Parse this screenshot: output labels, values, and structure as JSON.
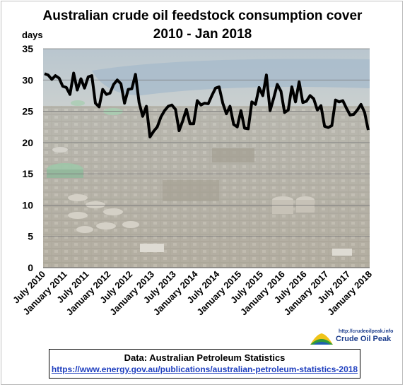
{
  "chart_data": {
    "type": "line",
    "title": "Australian  crude oil feedstock consumption  cover",
    "subtitle": "2010 - Jan 2018",
    "ylabel": "days",
    "ylim": [
      0,
      35
    ],
    "yticks": [
      "0",
      "5",
      "10",
      "15",
      "20",
      "25",
      "30",
      "35"
    ],
    "xticks": [
      "July 2010",
      "January 2011",
      "July 2011",
      "January 2012",
      "July 2012",
      "January 2013",
      "July 2013",
      "January 2014",
      "July 2014",
      "January 2015",
      "July 2015",
      "January 2016",
      "July 2016",
      "January 2017",
      "July 2017",
      "January 2018"
    ],
    "grid": true,
    "series": [
      {
        "color": "#000000",
        "values": [
          31.0,
          30.8,
          30.1,
          30.7,
          30.3,
          29.0,
          28.8,
          27.7,
          31.1,
          28.4,
          30.2,
          28.7,
          30.5,
          30.7,
          26.3,
          25.7,
          28.5,
          27.7,
          27.9,
          29.3,
          30.0,
          29.4,
          26.3,
          28.5,
          28.6,
          30.9,
          26.4,
          24.2,
          25.8,
          20.9,
          21.8,
          22.5,
          24.1,
          25.1,
          25.8,
          26.0,
          25.3,
          21.9,
          23.5,
          25.3,
          23.0,
          23.0,
          26.7,
          26.0,
          26.3,
          26.2,
          27.5,
          28.7,
          28.9,
          26.3,
          24.6,
          25.8,
          22.9,
          22.5,
          25.1,
          22.3,
          22.2,
          26.5,
          26.1,
          28.8,
          27.5,
          30.8,
          25.1,
          27.1,
          29.3,
          28.2,
          24.8,
          25.2,
          28.9,
          26.5,
          29.7,
          26.4,
          26.6,
          27.5,
          27.0,
          25.2,
          25.9,
          22.6,
          22.4,
          22.7,
          26.8,
          26.5,
          26.7,
          25.5,
          24.4,
          24.5,
          25.2,
          26.1,
          24.8,
          22.0
        ]
      }
    ]
  },
  "source": {
    "label": "Data: Australian Petroleum Statistics",
    "url": "https://www.energy.gov.au/publications/australian-petroleum-statistics-2018"
  },
  "logo": {
    "url": "http://crudeoilpeak.info",
    "name": "Crude Oil Peak"
  }
}
